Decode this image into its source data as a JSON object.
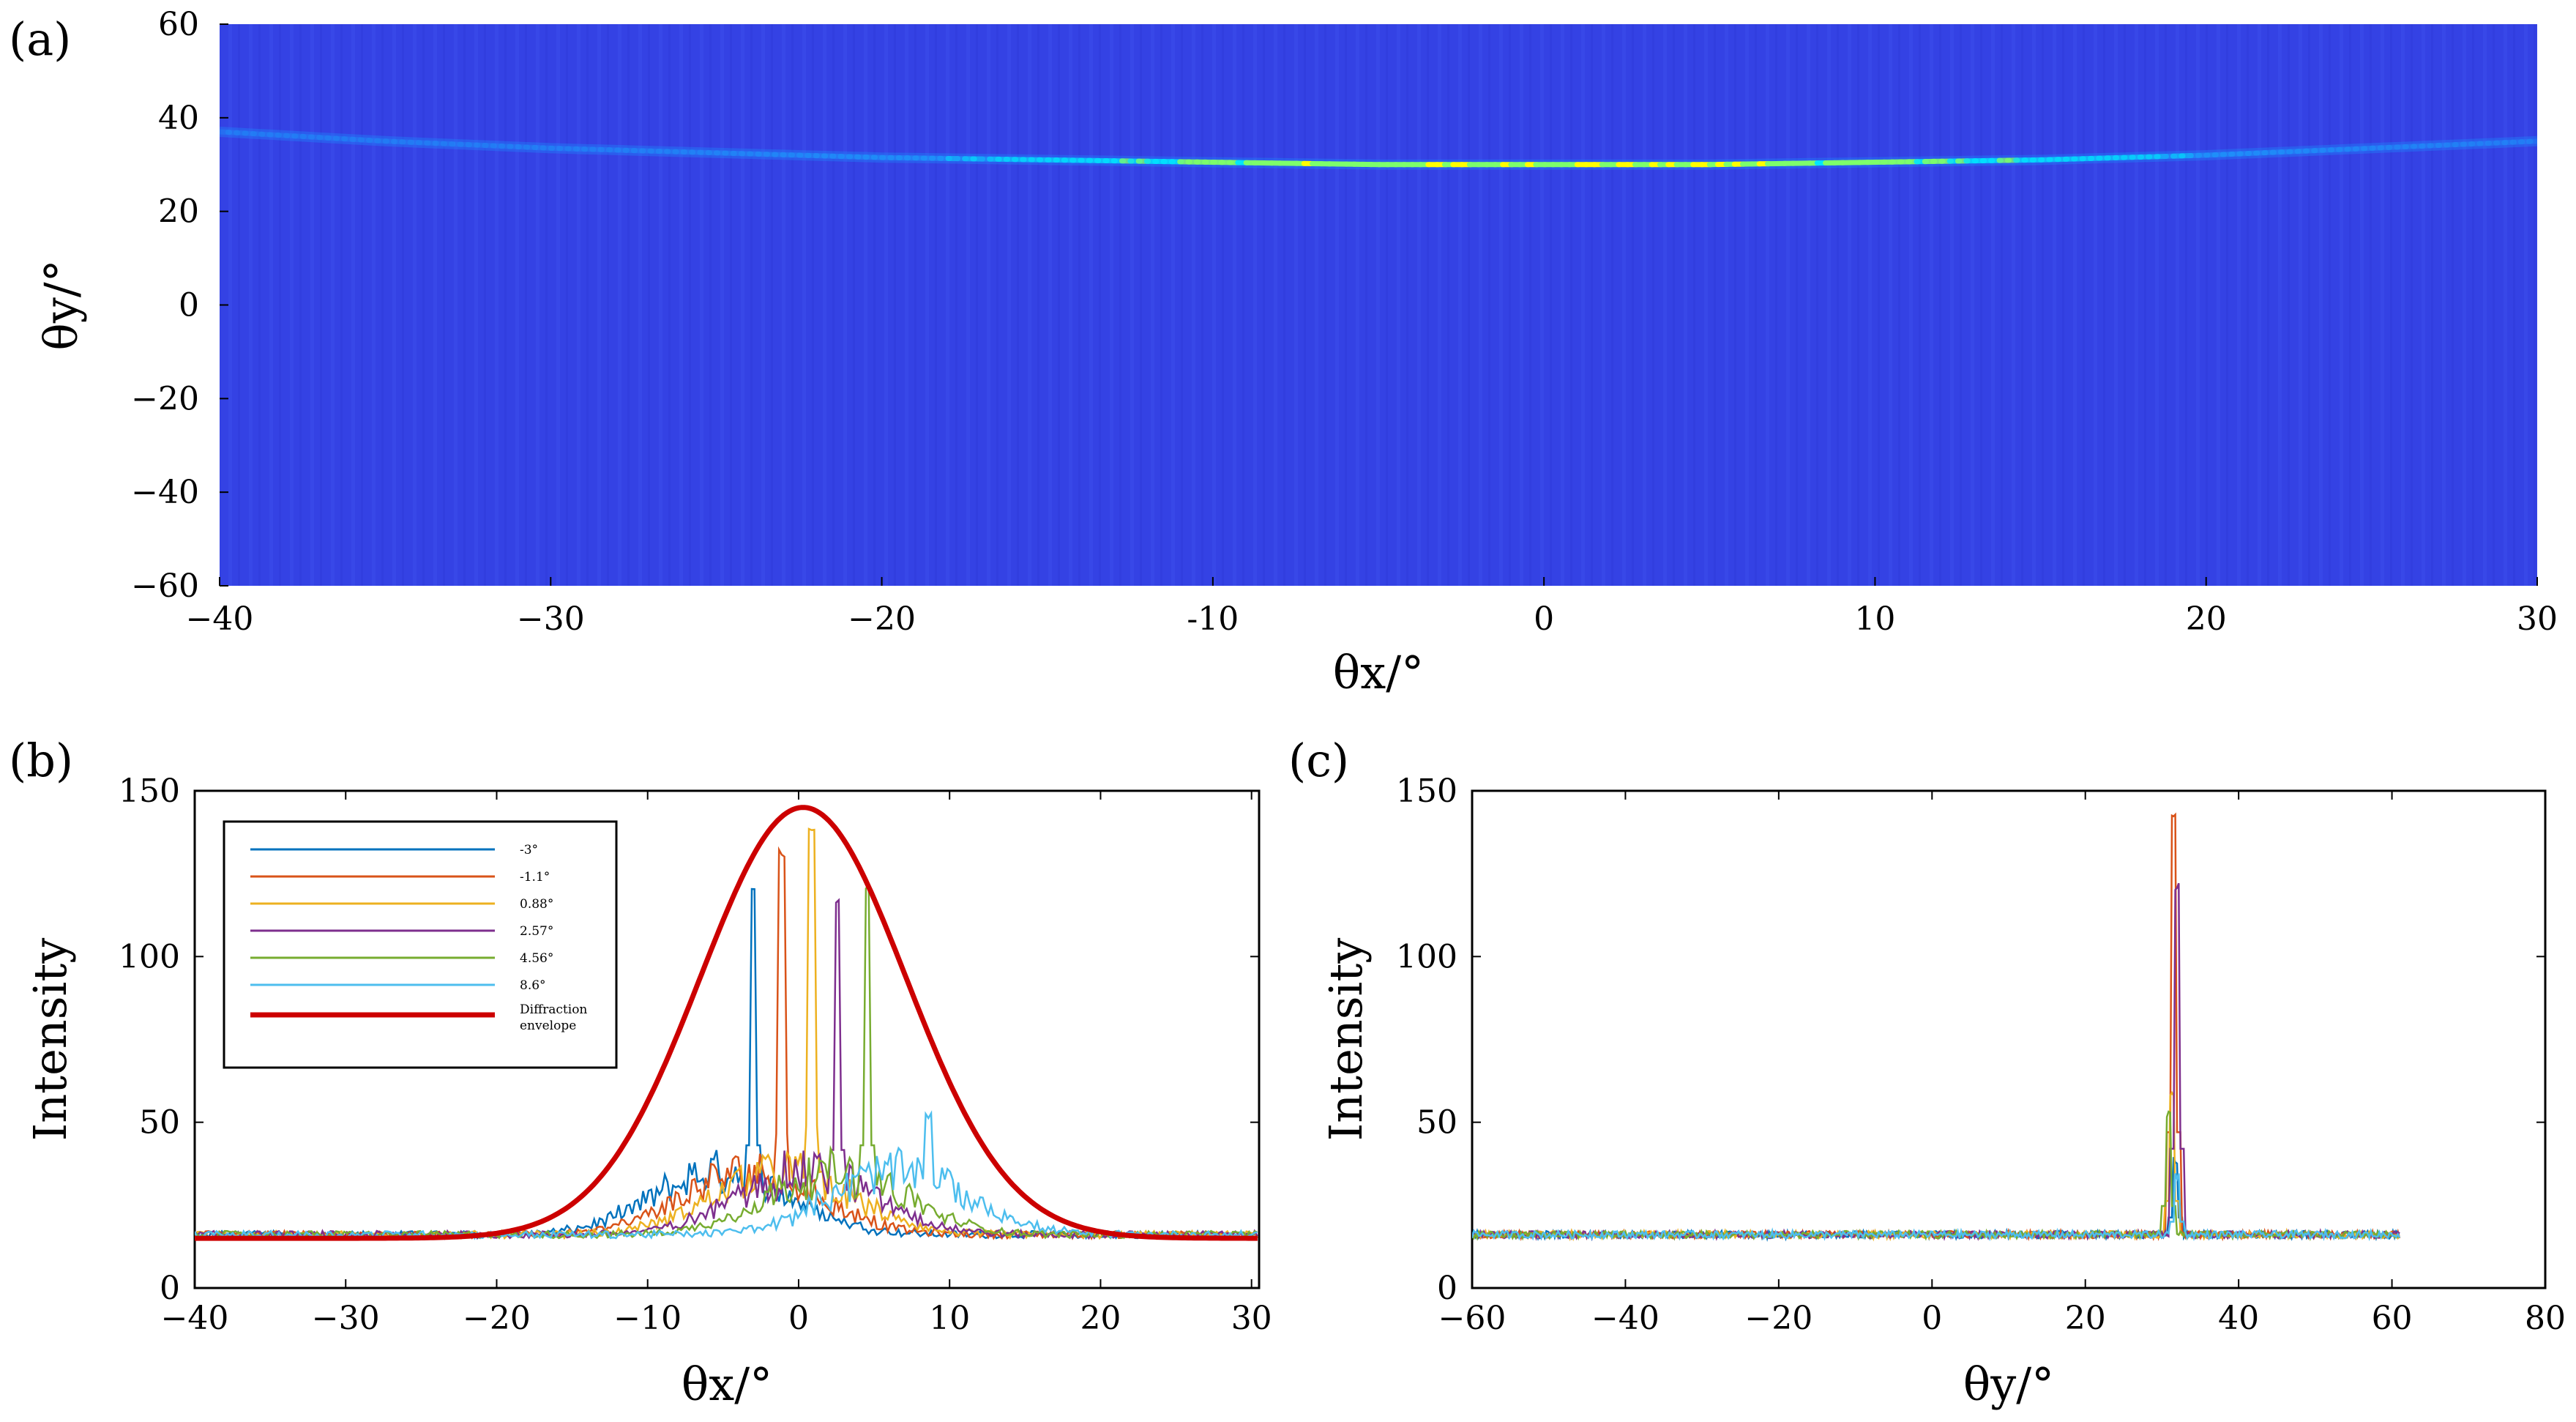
{
  "chart_data": [
    {
      "panel": "(a)",
      "type": "heatmap",
      "title": "",
      "xlabel": "θx/°",
      "ylabel": "θy/°",
      "xlim": [
        -40,
        30
      ],
      "ylim": [
        -60,
        60
      ],
      "xticks": [
        -40,
        -30,
        -20,
        -10,
        0,
        10,
        20,
        30
      ],
      "xtick_labels": [
        "−40",
        "−30",
        "−20",
        "-10",
        "0",
        "10",
        "20",
        "30"
      ],
      "yticks": [
        60,
        40,
        20,
        0,
        -20,
        -40,
        -60
      ],
      "ytick_labels": [
        "60",
        "40",
        "20",
        "0",
        "−20",
        "−40",
        "−60"
      ],
      "background_color": "#3845e6",
      "ridge": {
        "x": [
          -40,
          -35,
          -30,
          -25,
          -20,
          -15,
          -10,
          -5,
          0,
          5,
          10,
          15,
          20,
          25,
          30
        ],
        "y": [
          37,
          35,
          33.5,
          32.5,
          31.5,
          31,
          30.5,
          30,
          30,
          30,
          30.5,
          31,
          32,
          33.5,
          35
        ]
      },
      "colormap_stops": [
        "#2f3ee0",
        "#1aa3ff",
        "#00e5ff",
        "#7dff6b",
        "#ffff00"
      ]
    },
    {
      "panel": "(b)",
      "type": "line",
      "xlabel": "θx/°",
      "ylabel": "Intensity",
      "xlim": [
        -40,
        30.5
      ],
      "ylim": [
        0,
        150
      ],
      "xticks": [
        -40,
        -30,
        -20,
        -10,
        0,
        10,
        20,
        30
      ],
      "xtick_labels": [
        "−40",
        "−30",
        "−20",
        "−10",
        "0",
        "10",
        "20",
        "30"
      ],
      "yticks": [
        0,
        50,
        100,
        150
      ],
      "ytick_labels": [
        "0",
        "50",
        "100",
        "150"
      ],
      "baseline": 15,
      "series": [
        {
          "name": "-3°",
          "color": "#0072bd",
          "peak_x": -3,
          "peak_y": 123
        },
        {
          "name": "-1.1°",
          "color": "#d95319",
          "peak_x": -1.1,
          "peak_y": 133
        },
        {
          "name": "0.88°",
          "color": "#edb120",
          "peak_x": 0.88,
          "peak_y": 140
        },
        {
          "name": "2.57°",
          "color": "#7e2f8e",
          "peak_x": 2.57,
          "peak_y": 119
        },
        {
          "name": "4.56°",
          "color": "#77ac30",
          "peak_x": 4.56,
          "peak_y": 123
        },
        {
          "name": "8.6°",
          "color": "#4dbeee",
          "peak_x": 8.6,
          "peak_y": 53
        }
      ],
      "envelope": {
        "name_line1": "Diffraction",
        "name_line2": "envelope",
        "color": "#cc0000",
        "center": 0.3,
        "peak": 145,
        "sigma": 6.8
      }
    },
    {
      "panel": "(c)",
      "type": "line",
      "xlabel": "θy/°",
      "ylabel": "Intensity",
      "xlim": [
        -60,
        80
      ],
      "ylim": [
        0,
        150
      ],
      "xticks": [
        -60,
        -40,
        -20,
        0,
        20,
        40,
        60,
        80
      ],
      "xtick_labels": [
        "−60",
        "−40",
        "−20",
        "0",
        "20",
        "40",
        "60",
        "80"
      ],
      "yticks": [
        0,
        50,
        100,
        150
      ],
      "ytick_labels": [
        "0",
        "50",
        "100",
        "150"
      ],
      "data_xrange": [
        -60,
        61
      ],
      "baseline": 15,
      "series": [
        {
          "name": "-3°",
          "color": "#0072bd",
          "peak_x": 31.8,
          "peak_y": 40
        },
        {
          "name": "-1.1°",
          "color": "#d95319",
          "peak_x": 31.5,
          "peak_y": 143
        },
        {
          "name": "0.88°",
          "color": "#edb120",
          "peak_x": 31.3,
          "peak_y": 60
        },
        {
          "name": "2.57°",
          "color": "#7e2f8e",
          "peak_x": 32.0,
          "peak_y": 123
        },
        {
          "name": "4.56°",
          "color": "#77ac30",
          "peak_x": 30.8,
          "peak_y": 54
        },
        {
          "name": "8.6°",
          "color": "#4dbeee",
          "peak_x": 31.9,
          "peak_y": 35
        }
      ]
    }
  ]
}
